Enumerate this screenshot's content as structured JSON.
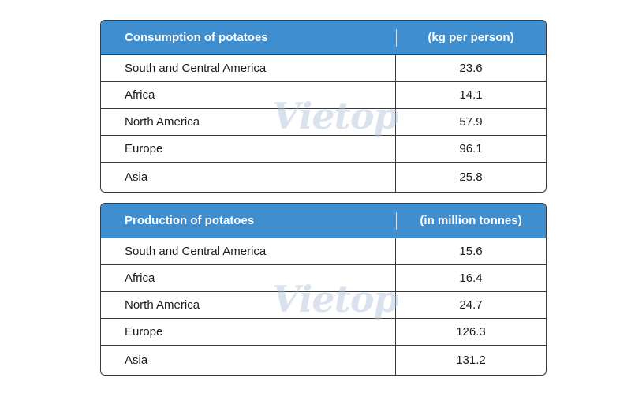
{
  "chart_data": [
    {
      "type": "table",
      "columns": [
        "Consumption of potatoes",
        "(kg per person)"
      ],
      "rows": [
        [
          "South and Central America",
          "23.6"
        ],
        [
          "Africa",
          "14.1"
        ],
        [
          "North America",
          "57.9"
        ],
        [
          "Europe",
          "96.1"
        ],
        [
          "Asia",
          "25.8"
        ]
      ],
      "values": [
        23.6,
        14.1,
        57.9,
        96.1,
        25.8
      ],
      "categories": [
        "South and Central America",
        "Africa",
        "North America",
        "Europe",
        "Asia"
      ]
    },
    {
      "type": "table",
      "columns": [
        "Production of potatoes",
        "(in million tonnes)"
      ],
      "rows": [
        [
          "South and Central America",
          "15.6"
        ],
        [
          "Africa",
          "16.4"
        ],
        [
          "North America",
          "24.7"
        ],
        [
          "Europe",
          "126.3"
        ],
        [
          "Asia",
          "131.2"
        ]
      ],
      "values": [
        15.6,
        16.4,
        24.7,
        126.3,
        131.2
      ],
      "categories": [
        "South and Central America",
        "Africa",
        "North America",
        "Europe",
        "Asia"
      ]
    }
  ],
  "colors": {
    "header_bg": "#3f8ed0",
    "header_text": "#ffffff",
    "border": "#3a3a3a"
  },
  "watermark": "Vietop"
}
